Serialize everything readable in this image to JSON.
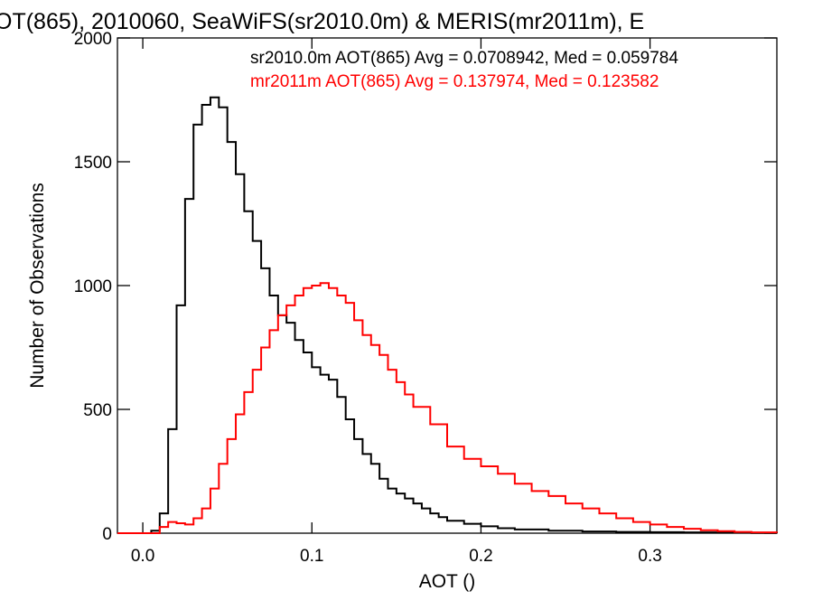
{
  "chart_data": {
    "type": "line",
    "title": "OT(865), 2010060, SeaWiFS(sr2010.0m) & MERIS(mr2011m), E",
    "xlabel": "AOT ()",
    "ylabel": "Number of Observations",
    "xlim": [
      -0.015,
      0.375
    ],
    "ylim": [
      0,
      2000
    ],
    "x_ticks": [
      0.0,
      0.1,
      0.2,
      0.3
    ],
    "x_tick_labels": [
      "0.0",
      "0.1",
      "0.2",
      "0.3"
    ],
    "y_ticks": [
      0,
      500,
      1000,
      1500,
      2000
    ],
    "y_tick_labels": [
      "0",
      "500",
      "1000",
      "1500",
      "2000"
    ],
    "grid": false,
    "legend_position": "top-right",
    "annotations": [
      {
        "text": "sr2010.0m AOT(865) Avg = 0.0708942, Med = 0.059784",
        "color": "#000000"
      },
      {
        "text": "mr2011m AOT(865) Avg = 0.137974, Med = 0.123582",
        "color": "#ff0000"
      }
    ],
    "series": [
      {
        "color": "#000000",
        "x": [
          -0.015,
          0.0,
          0.005,
          0.01,
          0.015,
          0.02,
          0.025,
          0.03,
          0.035,
          0.04,
          0.045,
          0.05,
          0.055,
          0.06,
          0.065,
          0.07,
          0.075,
          0.08,
          0.085,
          0.09,
          0.095,
          0.1,
          0.105,
          0.11,
          0.115,
          0.12,
          0.125,
          0.13,
          0.135,
          0.14,
          0.145,
          0.15,
          0.155,
          0.16,
          0.165,
          0.17,
          0.175,
          0.18,
          0.19,
          0.2,
          0.21,
          0.22,
          0.24,
          0.26,
          0.28,
          0.3,
          0.32,
          0.34,
          0.36,
          0.375
        ],
        "y": [
          0,
          0,
          10,
          80,
          420,
          920,
          1350,
          1650,
          1730,
          1760,
          1720,
          1580,
          1450,
          1300,
          1180,
          1070,
          960,
          880,
          850,
          780,
          730,
          670,
          640,
          620,
          550,
          460,
          380,
          320,
          280,
          220,
          180,
          160,
          140,
          120,
          100,
          80,
          65,
          50,
          38,
          28,
          20,
          15,
          10,
          7,
          5,
          4,
          3,
          2,
          1,
          0
        ]
      },
      {
        "color": "#ff0000",
        "x": [
          -0.015,
          0.0,
          0.005,
          0.01,
          0.015,
          0.02,
          0.025,
          0.03,
          0.035,
          0.04,
          0.045,
          0.05,
          0.055,
          0.06,
          0.065,
          0.07,
          0.075,
          0.08,
          0.085,
          0.09,
          0.095,
          0.1,
          0.105,
          0.11,
          0.115,
          0.12,
          0.125,
          0.13,
          0.135,
          0.14,
          0.145,
          0.15,
          0.155,
          0.16,
          0.17,
          0.18,
          0.19,
          0.2,
          0.21,
          0.22,
          0.23,
          0.24,
          0.25,
          0.26,
          0.27,
          0.28,
          0.29,
          0.3,
          0.31,
          0.32,
          0.33,
          0.34,
          0.35,
          0.36,
          0.375
        ],
        "y": [
          0,
          0,
          0,
          25,
          45,
          40,
          35,
          60,
          100,
          180,
          280,
          380,
          480,
          570,
          660,
          750,
          820,
          880,
          920,
          960,
          990,
          1000,
          1010,
          990,
          960,
          930,
          860,
          800,
          760,
          720,
          660,
          610,
          560,
          510,
          440,
          350,
          300,
          270,
          240,
          200,
          170,
          150,
          120,
          100,
          80,
          60,
          45,
          35,
          25,
          18,
          12,
          8,
          5,
          3,
          2
        ]
      }
    ]
  }
}
